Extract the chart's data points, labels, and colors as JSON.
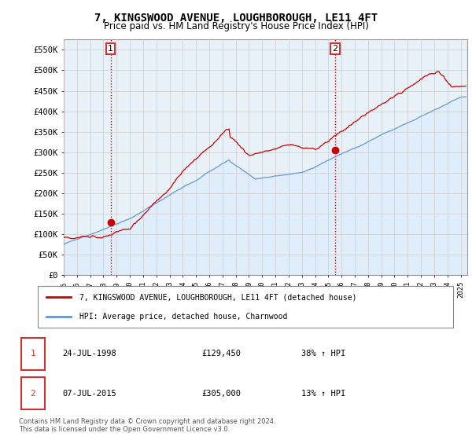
{
  "title": "7, KINGSWOOD AVENUE, LOUGHBOROUGH, LE11 4FT",
  "subtitle": "Price paid vs. HM Land Registry's House Price Index (HPI)",
  "ylabel_ticks": [
    "£0",
    "£50K",
    "£100K",
    "£150K",
    "£200K",
    "£250K",
    "£300K",
    "£350K",
    "£400K",
    "£450K",
    "£500K",
    "£550K"
  ],
  "ytick_values": [
    0,
    50000,
    100000,
    150000,
    200000,
    250000,
    300000,
    350000,
    400000,
    450000,
    500000,
    550000
  ],
  "ylim": [
    0,
    575000
  ],
  "xlim_start": 1995.0,
  "xlim_end": 2025.5,
  "sale1_x": 1998.55,
  "sale1_y": 129450,
  "sale1_label": "1",
  "sale1_date": "24-JUL-1998",
  "sale1_price": "£129,450",
  "sale1_hpi": "38% ↑ HPI",
  "sale2_x": 2015.52,
  "sale2_y": 305000,
  "sale2_label": "2",
  "sale2_date": "07-JUL-2015",
  "sale2_price": "£305,000",
  "sale2_hpi": "13% ↑ HPI",
  "legend_line1": "7, KINGSWOOD AVENUE, LOUGHBOROUGH, LE11 4FT (detached house)",
  "legend_line2": "HPI: Average price, detached house, Charnwood",
  "footer": "Contains HM Land Registry data © Crown copyright and database right 2024.\nThis data is licensed under the Open Government Licence v3.0.",
  "line_color_red": "#cc0000",
  "line_color_blue": "#6699cc",
  "fill_color_blue": "#ddeeff",
  "background_color": "#ffffff",
  "grid_color": "#cccccc",
  "sale_dot_color": "#cc0000",
  "vline_color": "#cc0000",
  "box_color": "#cc3333",
  "plot_bg_color": "#e8f0f8"
}
